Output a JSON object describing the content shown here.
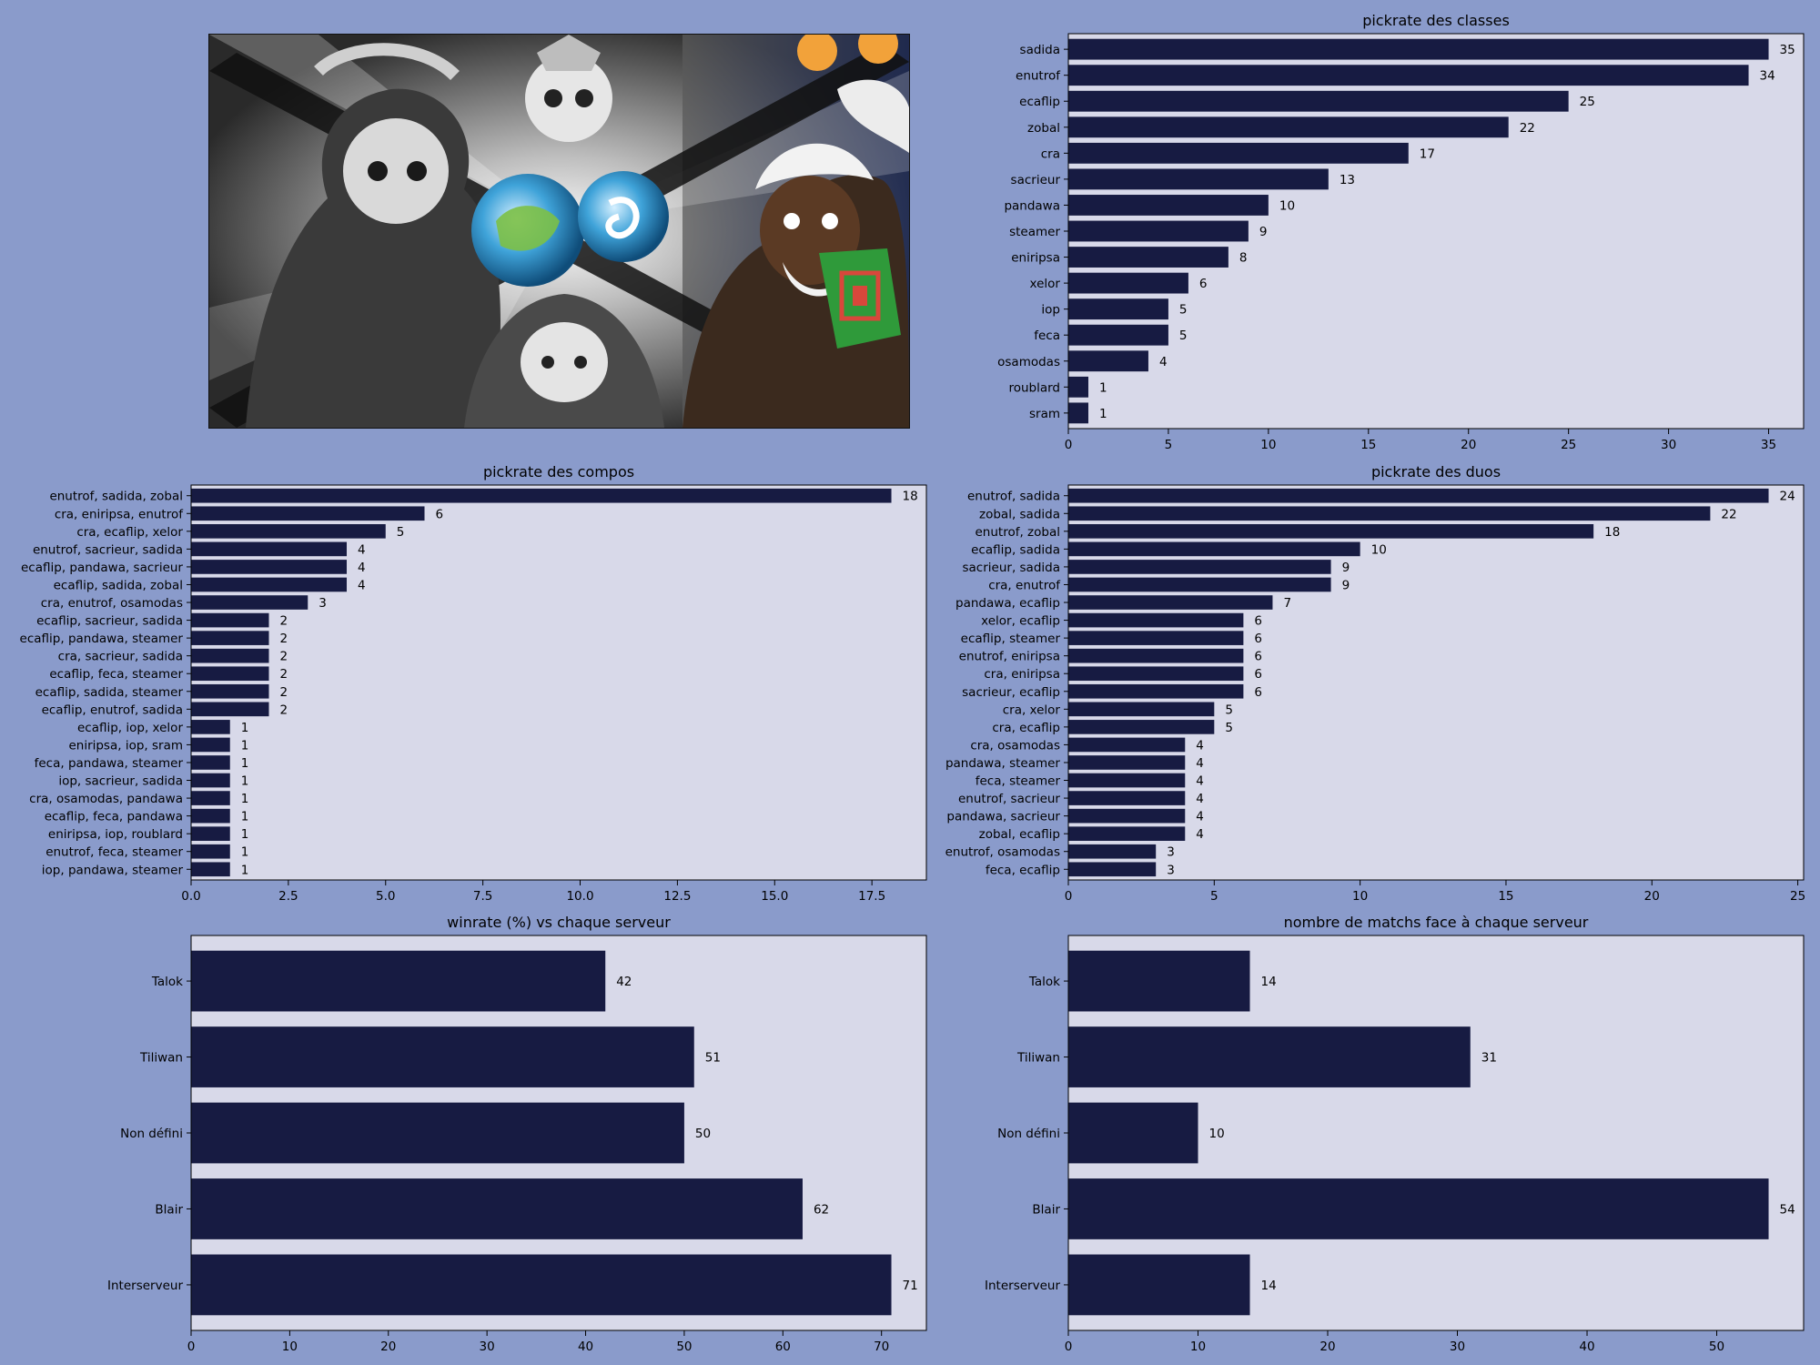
{
  "colors": {
    "figure_bg": "#8a9bcb",
    "plot_bg": "#d8d9e9",
    "bar": "#171b42",
    "artwork_frame": "#111111"
  },
  "artwork": {
    "icon": "game-artwork-illustration"
  },
  "chart_data": [
    {
      "id": "classes",
      "type": "bar",
      "orientation": "horizontal",
      "title": "pickrate des classes",
      "categories": [
        "sadida",
        "enutrof",
        "ecaflip",
        "zobal",
        "cra",
        "sacrieur",
        "pandawa",
        "steamer",
        "eniripsa",
        "xelor",
        "iop",
        "feca",
        "osamodas",
        "roublard",
        "sram"
      ],
      "values": [
        35,
        34,
        25,
        22,
        17,
        13,
        10,
        9,
        8,
        6,
        5,
        5,
        4,
        1,
        1
      ],
      "xlim": [
        0,
        36.75
      ],
      "xticks": [
        0,
        5,
        10,
        15,
        20,
        25,
        30,
        35
      ],
      "tick_labels": [
        "0",
        "5",
        "10",
        "15",
        "20",
        "25",
        "30",
        "35"
      ],
      "grid": false
    },
    {
      "id": "compos",
      "type": "bar",
      "orientation": "horizontal",
      "title": "pickrate des compos",
      "categories": [
        "enutrof, sadida, zobal",
        "cra, eniripsa, enutrof",
        "cra, ecaflip, xelor",
        "enutrof, sacrieur, sadida",
        "ecaflip, pandawa, sacrieur",
        "ecaflip, sadida, zobal",
        "cra, enutrof, osamodas",
        "ecaflip, sacrieur, sadida",
        "ecaflip, pandawa, steamer",
        "cra, sacrieur, sadida",
        "ecaflip, feca, steamer",
        "ecaflip, sadida, steamer",
        "ecaflip, enutrof, sadida",
        "ecaflip, iop, xelor",
        "eniripsa, iop, sram",
        "feca, pandawa, steamer",
        "iop, sacrieur, sadida",
        "cra, osamodas, pandawa",
        "ecaflip, feca, pandawa",
        "eniripsa, iop, roublard",
        "enutrof, feca, steamer",
        "iop, pandawa, steamer"
      ],
      "values": [
        18,
        6,
        5,
        4,
        4,
        4,
        3,
        2,
        2,
        2,
        2,
        2,
        2,
        1,
        1,
        1,
        1,
        1,
        1,
        1,
        1,
        1
      ],
      "xlim": [
        0,
        18.9
      ],
      "xticks": [
        0,
        2.5,
        5,
        7.5,
        10,
        12.5,
        15,
        17.5
      ],
      "tick_labels": [
        "0.0",
        "2.5",
        "5.0",
        "7.5",
        "10.0",
        "12.5",
        "15.0",
        "17.5"
      ],
      "grid": false
    },
    {
      "id": "duos",
      "type": "bar",
      "orientation": "horizontal",
      "title": "pickrate des duos",
      "categories": [
        "enutrof, sadida",
        "zobal, sadida",
        "enutrof, zobal",
        "ecaflip, sadida",
        "sacrieur, sadida",
        "cra, enutrof",
        "pandawa, ecaflip",
        "xelor, ecaflip",
        "ecaflip, steamer",
        "enutrof, eniripsa",
        "cra, eniripsa",
        "sacrieur, ecaflip",
        "cra, xelor",
        "cra, ecaflip",
        "cra, osamodas",
        "pandawa, steamer",
        "feca, steamer",
        "enutrof, sacrieur",
        "pandawa, sacrieur",
        "zobal, ecaflip",
        "enutrof, osamodas",
        "feca, ecaflip"
      ],
      "values": [
        24,
        22,
        18,
        10,
        9,
        9,
        7,
        6,
        6,
        6,
        6,
        6,
        5,
        5,
        4,
        4,
        4,
        4,
        4,
        4,
        3,
        3
      ],
      "xlim": [
        0,
        25.2
      ],
      "xticks": [
        0,
        5,
        10,
        15,
        20,
        25
      ],
      "tick_labels": [
        "0",
        "5",
        "10",
        "15",
        "20",
        "25"
      ],
      "grid": false
    },
    {
      "id": "winrate",
      "type": "bar",
      "orientation": "horizontal",
      "title": "winrate (%) vs chaque serveur",
      "categories": [
        "Talok",
        "Tiliwan",
        "Non défini",
        "Blair",
        "Interserveur"
      ],
      "values": [
        42,
        51,
        50,
        62,
        71
      ],
      "xlim": [
        0,
        74.55
      ],
      "xticks": [
        0,
        10,
        20,
        30,
        40,
        50,
        60,
        70
      ],
      "tick_labels": [
        "0",
        "10",
        "20",
        "30",
        "40",
        "50",
        "60",
        "70"
      ],
      "grid": false
    },
    {
      "id": "matchs",
      "type": "bar",
      "orientation": "horizontal",
      "title": "nombre de matchs face à chaque serveur",
      "categories": [
        "Talok",
        "Tiliwan",
        "Non défini",
        "Blair",
        "Interserveur"
      ],
      "values": [
        14,
        31,
        10,
        54,
        14
      ],
      "xlim": [
        0,
        56.7
      ],
      "xticks": [
        0,
        10,
        20,
        30,
        40,
        50
      ],
      "tick_labels": [
        "0",
        "10",
        "20",
        "30",
        "40",
        "50"
      ],
      "grid": false
    }
  ]
}
